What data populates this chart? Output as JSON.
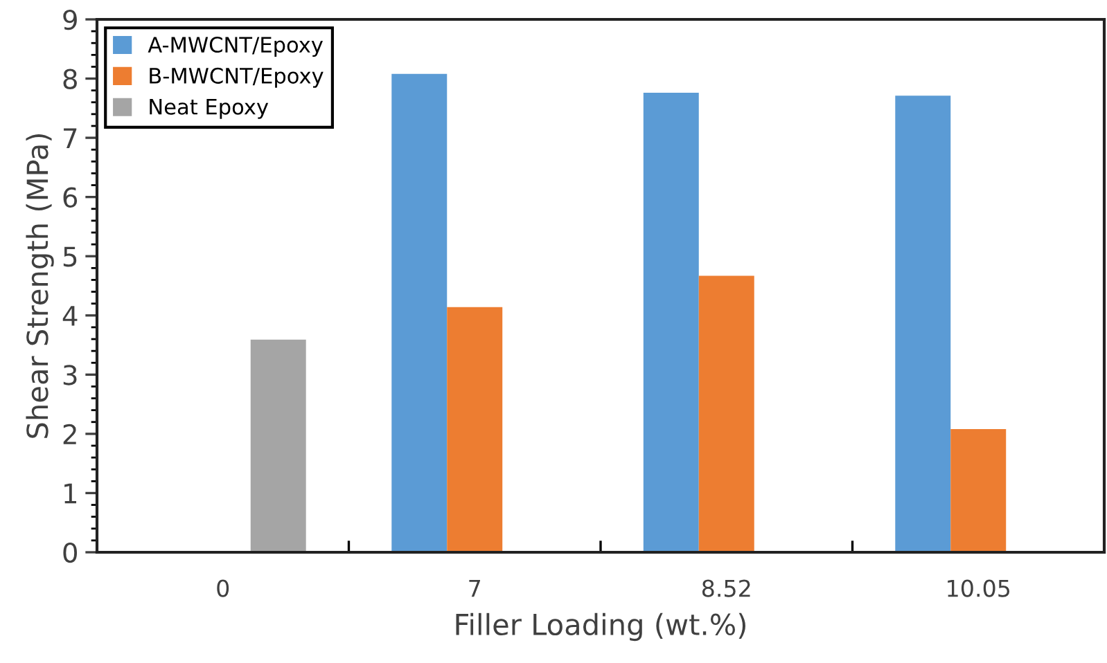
{
  "chart_data": {
    "type": "bar",
    "xlabel": "Filler Loading (wt.%)",
    "ylabel": "Shear Strength (MPa)",
    "categories": [
      "0",
      "7",
      "8.52",
      "10.05"
    ],
    "series": [
      {
        "name": "A-MWCNT/Epoxy",
        "color": "#5b9bd5",
        "values": [
          null,
          8.08,
          7.76,
          7.71
        ]
      },
      {
        "name": "B-MWCNT/Epoxy",
        "color": "#ed7d31",
        "values": [
          null,
          4.14,
          4.67,
          2.08
        ]
      },
      {
        "name": "Neat Epoxy",
        "color": "#a5a5a5",
        "values": [
          3.59,
          null,
          null,
          null
        ]
      }
    ],
    "ylim": [
      0,
      9
    ],
    "yticks": [
      0,
      1,
      2,
      3,
      4,
      5,
      6,
      7,
      8,
      9
    ],
    "grid": false,
    "legend": "top left"
  }
}
